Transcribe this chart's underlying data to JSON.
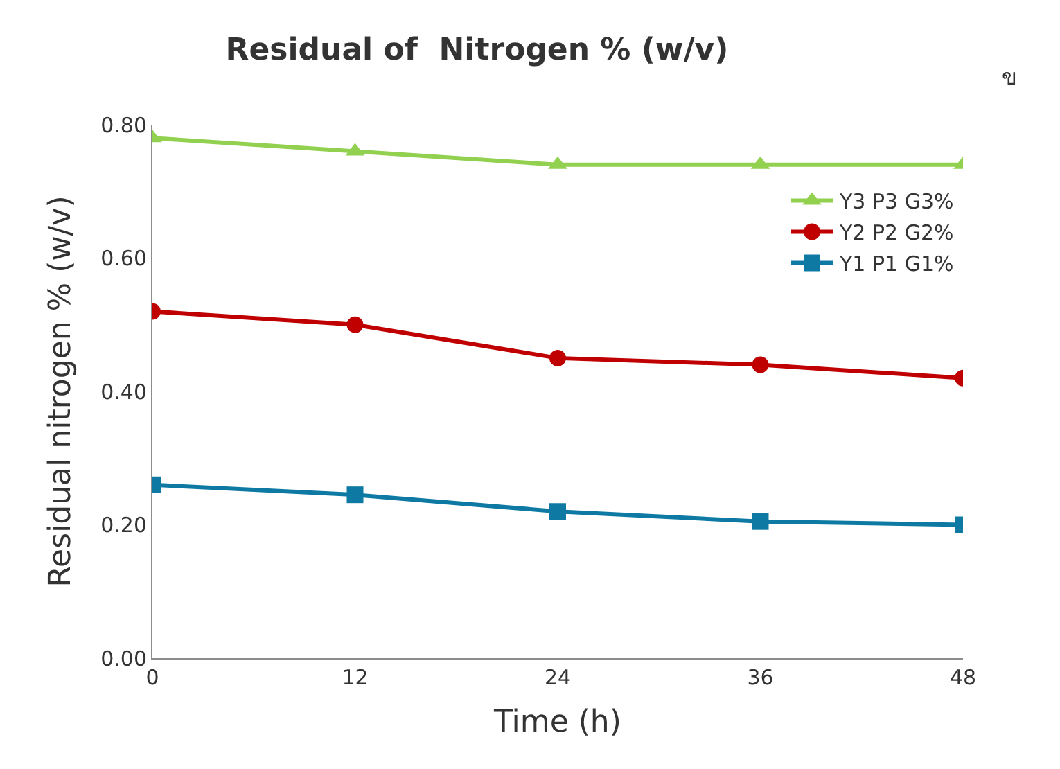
{
  "chart_data": {
    "type": "line",
    "title": "Residual of  Nitrogen % (w/v)",
    "xlabel": "Time (h)",
    "ylabel": "Residual nitrogen % (w/v)",
    "x": [
      0,
      12,
      24,
      36,
      48
    ],
    "series": [
      {
        "name": "Y3 P3 G3%",
        "color": "#92d050",
        "marker": "triangle",
        "values": [
          0.78,
          0.76,
          0.74,
          0.74,
          0.74
        ]
      },
      {
        "name": "Y2 P2 G2%",
        "color": "#c00000",
        "marker": "circle",
        "values": [
          0.52,
          0.5,
          0.45,
          0.44,
          0.42
        ]
      },
      {
        "name": "Y1 P1 G1%",
        "color": "#0e7aa3",
        "marker": "square",
        "values": [
          0.26,
          0.245,
          0.22,
          0.205,
          0.2
        ]
      }
    ],
    "xlim": [
      0,
      48
    ],
    "xticks": [
      0,
      12,
      24,
      36,
      48
    ],
    "ylim": [
      0,
      0.8
    ],
    "yticks": [
      {
        "value": 0,
        "label": "0.00"
      },
      {
        "value": 0.2,
        "label": "0.20"
      },
      {
        "value": 0.4,
        "label": "0.40"
      },
      {
        "value": 0.6,
        "label": "0.60"
      },
      {
        "value": 0.8,
        "label": "0.80"
      }
    ],
    "legend": "top right",
    "annotations": [
      "ข"
    ]
  }
}
